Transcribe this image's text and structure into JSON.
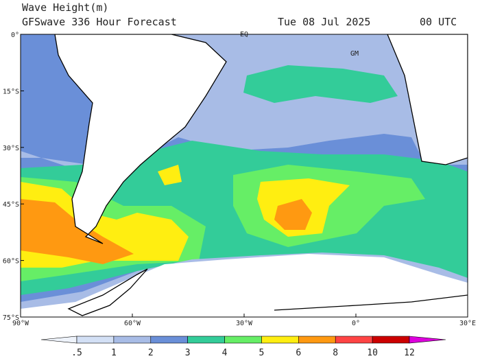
{
  "header": {
    "title": "Wave Height(m)",
    "model": "GFSwave 336 Hour Forecast",
    "date": "Tue 08 Jul 2025",
    "time": "00 UTC"
  },
  "map": {
    "lat_labels": [
      "0°",
      "15°S",
      "30°S",
      "45°S",
      "60°S",
      "75°S"
    ],
    "lon_labels": [
      "90°W",
      "60°W",
      "30°W",
      "0°",
      "30°E"
    ],
    "markers": [
      "EQ",
      "GM"
    ]
  },
  "colorbar": {
    "labels": [
      ".5",
      "1",
      "2",
      "3",
      "4",
      "5",
      "6",
      "8",
      "10",
      "12"
    ],
    "colors": [
      "#eef3fb",
      "#d3e0f5",
      "#a8bce6",
      "#6a8fd8",
      "#33cc99",
      "#66ee66",
      "#ffee11",
      "#ff9911",
      "#ff4444",
      "#cc0000",
      "#dd00dd"
    ]
  }
}
